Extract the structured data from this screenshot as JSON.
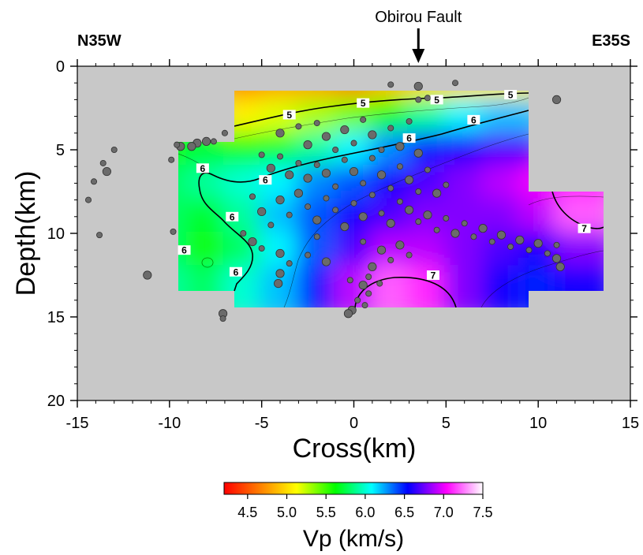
{
  "chart_data": {
    "type": "heatmap",
    "title": "",
    "annotation": "Obirou Fault",
    "annotation_x": 3.5,
    "left_label": "N35W",
    "right_label": "E35S",
    "xlabel": "Cross(km)",
    "ylabel": "Depth(km)",
    "xlim": [
      -15,
      15
    ],
    "ylim": [
      0,
      20
    ],
    "y_inverted": true,
    "xticks": [
      "-15",
      "-10",
      "-5",
      "0",
      "5",
      "10",
      "15"
    ],
    "yticks": [
      "0",
      "5",
      "10",
      "15",
      "20"
    ],
    "grid": false,
    "background_color": "#c8c8c8",
    "colorbar": {
      "label": "Vp (km/s)",
      "range": [
        4.2,
        7.5
      ],
      "ticks": [
        "4.5",
        "5.0",
        "5.5",
        "6.0",
        "6.5",
        "7.0",
        "7.5"
      ],
      "colormap": [
        "#ff0000",
        "#ff8000",
        "#ffff00",
        "#00ff00",
        "#00ffff",
        "#0000ff",
        "#ff00ff",
        "#ffffff"
      ]
    },
    "velocity_grid": {
      "x": [
        -9.5,
        -7.5,
        -5.5,
        -3.5,
        -1.5,
        0.5,
        2.5,
        4.5,
        6.5,
        8.5,
        10.5,
        12.5
      ],
      "z": [
        1.5,
        3.5,
        5.5,
        7.5,
        9.5,
        11.5,
        13.5
      ],
      "vp": [
        [
          null,
          null,
          4.7,
          4.8,
          4.8,
          4.7,
          4.9,
          5.0,
          5.0,
          5.1,
          null,
          null
        ],
        [
          null,
          null,
          5.1,
          5.2,
          5.3,
          5.4,
          5.6,
          5.9,
          6.1,
          6.2,
          null,
          null
        ],
        [
          5.6,
          5.7,
          5.6,
          5.7,
          5.9,
          6.1,
          6.3,
          6.5,
          6.6,
          6.7,
          null,
          null
        ],
        [
          5.8,
          5.9,
          6.0,
          6.1,
          6.3,
          6.4,
          6.6,
          6.7,
          6.8,
          6.9,
          7.0,
          7.1
        ],
        [
          5.8,
          5.7,
          5.9,
          6.2,
          6.4,
          6.6,
          6.7,
          6.8,
          6.8,
          6.8,
          6.9,
          7.2
        ],
        [
          5.8,
          5.6,
          5.8,
          6.1,
          6.4,
          6.7,
          6.9,
          6.9,
          6.8,
          6.7,
          6.6,
          6.8
        ],
        [
          5.9,
          5.8,
          6.0,
          6.2,
          6.5,
          6.9,
          7.2,
          7.1,
          6.8,
          6.6,
          6.5,
          6.6
        ]
      ]
    },
    "contour_labels": [
      {
        "text": "5",
        "x": 0.5,
        "z": 2.2
      },
      {
        "text": "5",
        "x": -3.5,
        "z": 2.9
      },
      {
        "text": "5",
        "x": 4.5,
        "z": 2.0
      },
      {
        "text": "5",
        "x": 8.5,
        "z": 1.7
      },
      {
        "text": "6",
        "x": 6.5,
        "z": 3.2
      },
      {
        "text": "6",
        "x": 3.0,
        "z": 4.3
      },
      {
        "text": "6",
        "x": -4.8,
        "z": 6.8
      },
      {
        "text": "6",
        "x": -8.2,
        "z": 6.1
      },
      {
        "text": "6",
        "x": -6.6,
        "z": 9.0
      },
      {
        "text": "6",
        "x": -9.2,
        "z": 11.0
      },
      {
        "text": "6",
        "x": -6.4,
        "z": 12.3
      },
      {
        "text": "7",
        "x": 4.3,
        "z": 12.5
      },
      {
        "text": "7",
        "x": 12.5,
        "z": 9.7
      }
    ],
    "earthquakes": [
      {
        "x": 3.5,
        "z": 1.2,
        "m": 2
      },
      {
        "x": 5.5,
        "z": 1.0,
        "m": 1
      },
      {
        "x": 11.0,
        "z": 2.0,
        "m": 2
      },
      {
        "x": 3.5,
        "z": 2.0,
        "m": 1
      },
      {
        "x": 4.0,
        "z": 1.9,
        "m": 1
      },
      {
        "x": 2.0,
        "z": 1.1,
        "m": 1
      },
      {
        "x": -8.5,
        "z": 4.6,
        "m": 2
      },
      {
        "x": -8.0,
        "z": 4.5,
        "m": 2
      },
      {
        "x": -8.8,
        "z": 4.8,
        "m": 2
      },
      {
        "x": -9.4,
        "z": 4.8,
        "m": 2
      },
      {
        "x": -7.6,
        "z": 4.5,
        "m": 1
      },
      {
        "x": -7.0,
        "z": 4.0,
        "m": 1
      },
      {
        "x": -13.0,
        "z": 5.0,
        "m": 1
      },
      {
        "x": -13.4,
        "z": 6.3,
        "m": 2
      },
      {
        "x": -13.6,
        "z": 5.8,
        "m": 1
      },
      {
        "x": -14.1,
        "z": 6.9,
        "m": 1
      },
      {
        "x": -14.4,
        "z": 8.0,
        "m": 1
      },
      {
        "x": -13.8,
        "z": 10.1,
        "m": 1
      },
      {
        "x": -11.2,
        "z": 12.5,
        "m": 2
      },
      {
        "x": -9.8,
        "z": 9.9,
        "m": 1
      },
      {
        "x": -7.1,
        "z": 14.8,
        "m": 2
      },
      {
        "x": -7.1,
        "z": 15.1,
        "m": 1
      },
      {
        "x": -9.9,
        "z": 5.6,
        "m": 1
      },
      {
        "x": -9.6,
        "z": 4.7,
        "m": 1
      },
      {
        "x": -4.0,
        "z": 4.0,
        "m": 2
      },
      {
        "x": -3.0,
        "z": 3.6,
        "m": 1
      },
      {
        "x": -2.5,
        "z": 4.7,
        "m": 2
      },
      {
        "x": -2.0,
        "z": 3.4,
        "m": 1
      },
      {
        "x": -1.5,
        "z": 4.2,
        "m": 2
      },
      {
        "x": -1.0,
        "z": 5.0,
        "m": 1
      },
      {
        "x": -0.5,
        "z": 3.8,
        "m": 2
      },
      {
        "x": 0.0,
        "z": 4.6,
        "m": 1
      },
      {
        "x": 0.5,
        "z": 3.2,
        "m": 1
      },
      {
        "x": 1.0,
        "z": 4.1,
        "m": 2
      },
      {
        "x": 1.5,
        "z": 5.0,
        "m": 1
      },
      {
        "x": 2.0,
        "z": 3.7,
        "m": 1
      },
      {
        "x": 2.5,
        "z": 4.8,
        "m": 2
      },
      {
        "x": 3.0,
        "z": 3.3,
        "m": 1
      },
      {
        "x": 3.5,
        "z": 5.2,
        "m": 2
      },
      {
        "x": -5.0,
        "z": 5.3,
        "m": 1
      },
      {
        "x": -4.5,
        "z": 6.1,
        "m": 2
      },
      {
        "x": -4.0,
        "z": 5.4,
        "m": 1
      },
      {
        "x": -3.5,
        "z": 6.5,
        "m": 2
      },
      {
        "x": -3.0,
        "z": 5.8,
        "m": 1
      },
      {
        "x": -2.5,
        "z": 6.7,
        "m": 2
      },
      {
        "x": -2.0,
        "z": 5.9,
        "m": 1
      },
      {
        "x": -1.5,
        "z": 6.4,
        "m": 2
      },
      {
        "x": -1.0,
        "z": 7.2,
        "m": 1
      },
      {
        "x": -0.5,
        "z": 5.6,
        "m": 1
      },
      {
        "x": 0.0,
        "z": 6.3,
        "m": 2
      },
      {
        "x": 0.5,
        "z": 7.0,
        "m": 1
      },
      {
        "x": 1.0,
        "z": 5.5,
        "m": 1
      },
      {
        "x": 1.5,
        "z": 6.5,
        "m": 2
      },
      {
        "x": 2.0,
        "z": 7.3,
        "m": 1
      },
      {
        "x": 2.5,
        "z": 6.0,
        "m": 1
      },
      {
        "x": 3.0,
        "z": 6.8,
        "m": 2
      },
      {
        "x": 3.5,
        "z": 7.5,
        "m": 1
      },
      {
        "x": 4.0,
        "z": 6.2,
        "m": 1
      },
      {
        "x": 4.5,
        "z": 7.6,
        "m": 2
      },
      {
        "x": 5.0,
        "z": 7.1,
        "m": 1
      },
      {
        "x": -5.5,
        "z": 7.8,
        "m": 1
      },
      {
        "x": -5.0,
        "z": 8.7,
        "m": 2
      },
      {
        "x": -4.5,
        "z": 9.5,
        "m": 1
      },
      {
        "x": -4.0,
        "z": 8.0,
        "m": 2
      },
      {
        "x": -3.5,
        "z": 8.9,
        "m": 1
      },
      {
        "x": -3.0,
        "z": 7.6,
        "m": 2
      },
      {
        "x": -2.5,
        "z": 8.4,
        "m": 1
      },
      {
        "x": -2.0,
        "z": 9.2,
        "m": 2
      },
      {
        "x": -1.5,
        "z": 7.9,
        "m": 1
      },
      {
        "x": -1.0,
        "z": 8.6,
        "m": 1
      },
      {
        "x": -0.5,
        "z": 9.6,
        "m": 2
      },
      {
        "x": 0.0,
        "z": 8.2,
        "m": 1
      },
      {
        "x": 0.5,
        "z": 9.0,
        "m": 2
      },
      {
        "x": 1.0,
        "z": 7.7,
        "m": 1
      },
      {
        "x": 1.5,
        "z": 8.8,
        "m": 1
      },
      {
        "x": 2.0,
        "z": 9.4,
        "m": 2
      },
      {
        "x": 2.5,
        "z": 8.1,
        "m": 1
      },
      {
        "x": 3.0,
        "z": 8.6,
        "m": 2
      },
      {
        "x": 3.5,
        "z": 9.3,
        "m": 1
      },
      {
        "x": 4.0,
        "z": 8.9,
        "m": 2
      },
      {
        "x": 4.5,
        "z": 9.8,
        "m": 1
      },
      {
        "x": 5.0,
        "z": 9.1,
        "m": 1
      },
      {
        "x": 5.5,
        "z": 10.0,
        "m": 2
      },
      {
        "x": 6.0,
        "z": 9.4,
        "m": 1
      },
      {
        "x": 6.5,
        "z": 10.2,
        "m": 1
      },
      {
        "x": 7.0,
        "z": 9.7,
        "m": 2
      },
      {
        "x": 7.5,
        "z": 10.5,
        "m": 1
      },
      {
        "x": 8.0,
        "z": 10.1,
        "m": 2
      },
      {
        "x": 8.5,
        "z": 10.8,
        "m": 1
      },
      {
        "x": 9.0,
        "z": 10.4,
        "m": 2
      },
      {
        "x": 9.5,
        "z": 11.0,
        "m": 1
      },
      {
        "x": 10.0,
        "z": 10.6,
        "m": 2
      },
      {
        "x": 10.5,
        "z": 11.2,
        "m": 1
      },
      {
        "x": 11.0,
        "z": 11.5,
        "m": 2
      },
      {
        "x": 11.2,
        "z": 12.0,
        "m": 2
      },
      {
        "x": 11.0,
        "z": 10.7,
        "m": 1
      },
      {
        "x": -6.0,
        "z": 10.0,
        "m": 1
      },
      {
        "x": -5.5,
        "z": 10.5,
        "m": 2
      },
      {
        "x": -5.0,
        "z": 10.9,
        "m": 1
      },
      {
        "x": -4.0,
        "z": 11.2,
        "m": 2
      },
      {
        "x": -3.5,
        "z": 11.8,
        "m": 1
      },
      {
        "x": -4.0,
        "z": 12.4,
        "m": 2
      },
      {
        "x": -4.1,
        "z": 13.0,
        "m": 2
      },
      {
        "x": -2.5,
        "z": 11.3,
        "m": 1
      },
      {
        "x": -2.0,
        "z": 10.2,
        "m": 1
      },
      {
        "x": -1.5,
        "z": 11.7,
        "m": 2
      },
      {
        "x": 0.5,
        "z": 10.5,
        "m": 1
      },
      {
        "x": 1.5,
        "z": 11.0,
        "m": 2
      },
      {
        "x": 2.0,
        "z": 11.6,
        "m": 1
      },
      {
        "x": 2.5,
        "z": 10.7,
        "m": 2
      },
      {
        "x": 3.0,
        "z": 11.3,
        "m": 1
      },
      {
        "x": 1.0,
        "z": 12.0,
        "m": 2
      },
      {
        "x": 0.8,
        "z": 12.6,
        "m": 1
      },
      {
        "x": 0.5,
        "z": 13.1,
        "m": 2
      },
      {
        "x": 0.8,
        "z": 13.6,
        "m": 1
      },
      {
        "x": 0.2,
        "z": 14.0,
        "m": 1
      },
      {
        "x": -0.1,
        "z": 14.6,
        "m": 2
      },
      {
        "x": -0.3,
        "z": 14.8,
        "m": 2
      },
      {
        "x": 0.6,
        "z": 14.3,
        "m": 1
      },
      {
        "x": 1.4,
        "z": 13.0,
        "m": 1
      },
      {
        "x": -0.2,
        "z": 12.8,
        "m": 1
      }
    ]
  }
}
